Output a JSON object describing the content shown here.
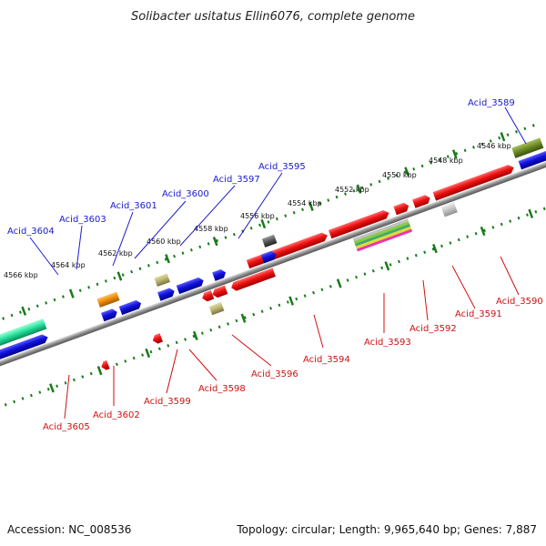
{
  "title": "Solibacter usitatus Ellin6076, complete genome",
  "footer": {
    "accession": "Accession: NC_008536",
    "summary": "Topology: circular; Length: 9,965,640 bp; Genes: 7,887"
  },
  "colors": {
    "red": "#ee1111",
    "blue": "#1111dd",
    "backbone": "#8a8a8a",
    "tick": "#1a7a1a",
    "label_top": "#1a1acc",
    "label_bottom": "#cc1111"
  },
  "kbp_labels": [
    "4546 kbp",
    "4548 kbp",
    "4550 kbp",
    "4552 kbp",
    "4554 kbp",
    "4556 kbp",
    "4558 kbp",
    "4560 kbp",
    "4562 kbp",
    "4564 kbp",
    "4566 kbp"
  ],
  "genes_top": [
    "Acid_3589",
    "Acid_3595",
    "Acid_3597",
    "Acid_3600",
    "Acid_3601",
    "Acid_3603",
    "Acid_3604"
  ],
  "genes_bottom": [
    "Acid_3590",
    "Acid_3591",
    "Acid_3592",
    "Acid_3593",
    "Acid_3594",
    "Acid_3596",
    "Acid_3598",
    "Acid_3599",
    "Acid_3602",
    "Acid_3605"
  ]
}
